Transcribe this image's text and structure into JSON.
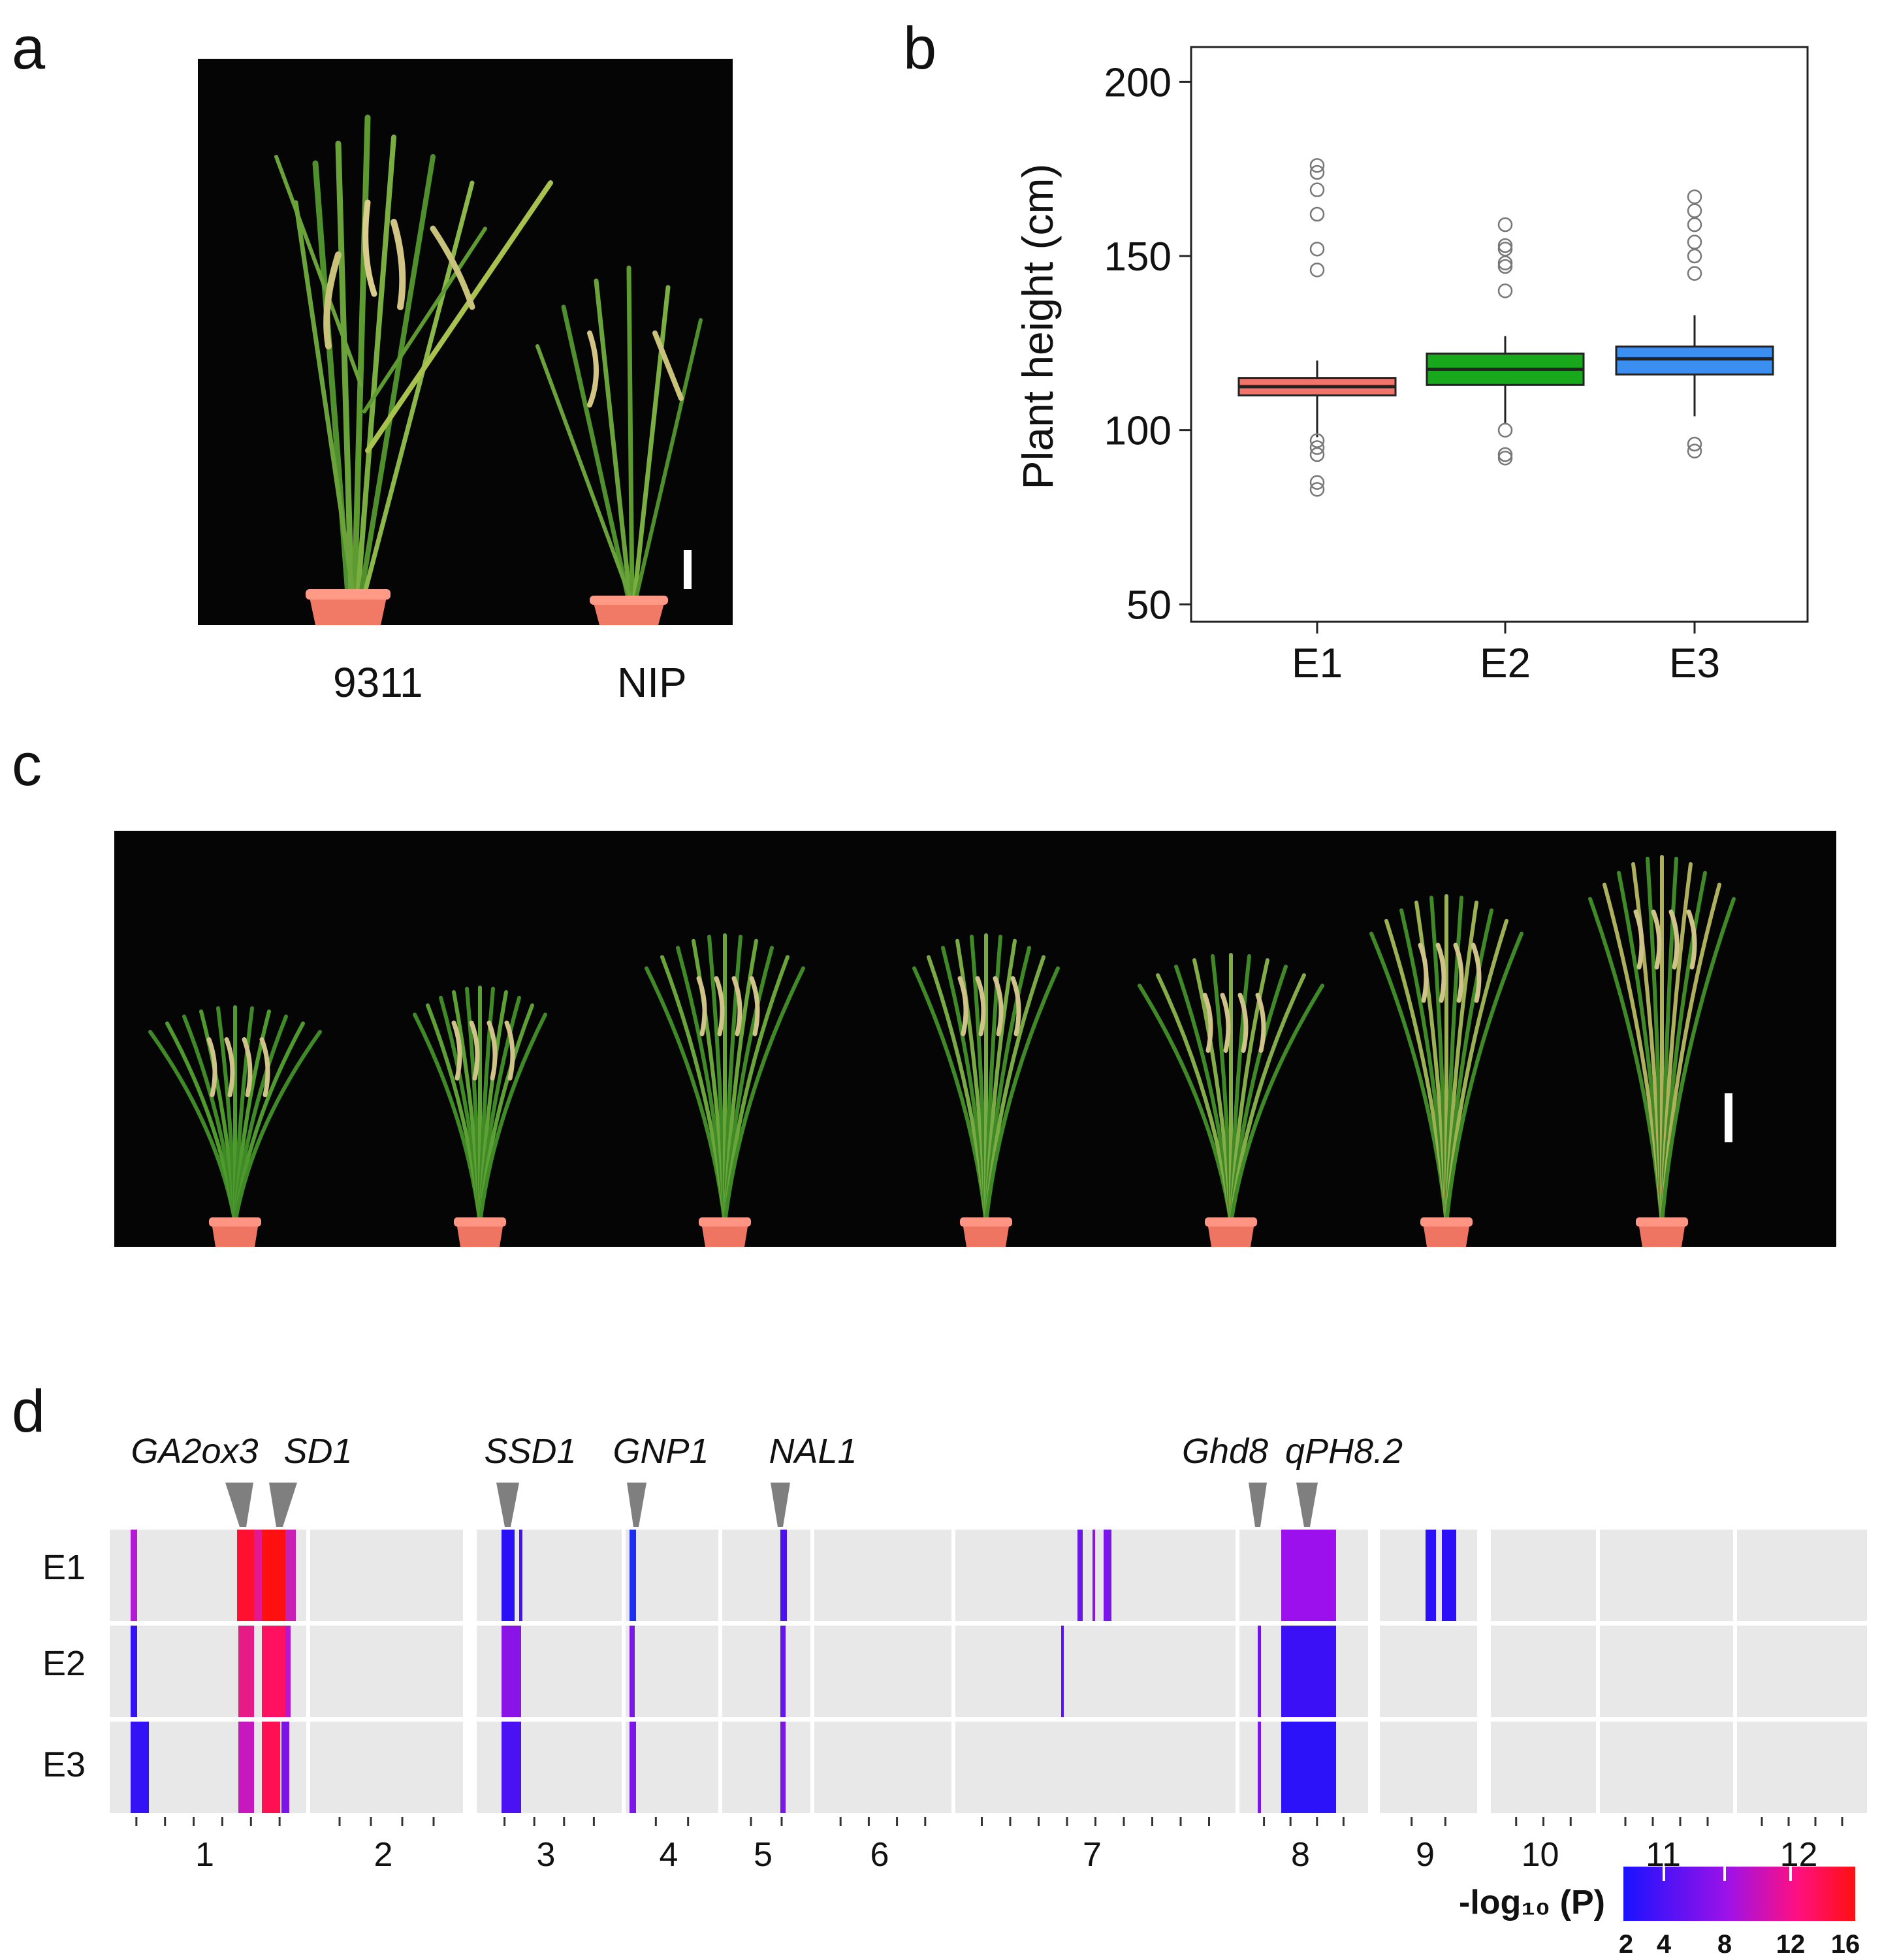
{
  "panels": {
    "a": {
      "letter": "a",
      "labels": [
        "9311",
        "NIP"
      ]
    },
    "b": {
      "letter": "b"
    },
    "c": {
      "letter": "c"
    },
    "d": {
      "letter": "d",
      "genes": [
        "GA2ox3",
        "SD1",
        "SSD1",
        "GNP1",
        "NAL1",
        "Ghd8",
        "qPH8.2"
      ],
      "rows": [
        "E1",
        "E2",
        "E3"
      ],
      "chromosomes": [
        "1",
        "2",
        "3",
        "4",
        "5",
        "6",
        "7",
        "8",
        "9",
        "10",
        "11",
        "12"
      ],
      "legend_title": "-log₁₀ (P)",
      "legend_ticks": [
        "2",
        "4",
        "8",
        "12",
        "16"
      ]
    }
  },
  "colors": {
    "E1": "#f2746b",
    "E2": "#17a81c",
    "E3": "#3b8ff0",
    "heat_low": "#2a10f5",
    "heat_mid": "#9b17e0",
    "heat_high": "#ff0022",
    "track_bg": "#e8e8e8"
  },
  "chart_data": {
    "type": "box",
    "title": "",
    "xlabel": "",
    "ylabel": "Plant  height (cm)",
    "ylim": [
      45,
      210
    ],
    "yticks": [
      50,
      100,
      150,
      200
    ],
    "categories": [
      "E1",
      "E2",
      "E3"
    ],
    "boxes": [
      {
        "name": "E1",
        "q1": 110,
        "median": 112.5,
        "q3": 115,
        "whisker_low": 98,
        "whisker_high": 120,
        "outliers": [
          176,
          174,
          169,
          162,
          152,
          146,
          97,
          95,
          93,
          85,
          83
        ]
      },
      {
        "name": "E2",
        "q1": 113,
        "median": 117.5,
        "q3": 122,
        "whisker_low": 102,
        "whisker_high": 127,
        "outliers": [
          159,
          153,
          152,
          148,
          147,
          140,
          100,
          93,
          92
        ]
      },
      {
        "name": "E3",
        "q1": 116,
        "median": 120.5,
        "q3": 124,
        "whisker_low": 104,
        "whisker_high": 133,
        "outliers": [
          167,
          163,
          159,
          154,
          150,
          145,
          96,
          94
        ]
      }
    ]
  }
}
